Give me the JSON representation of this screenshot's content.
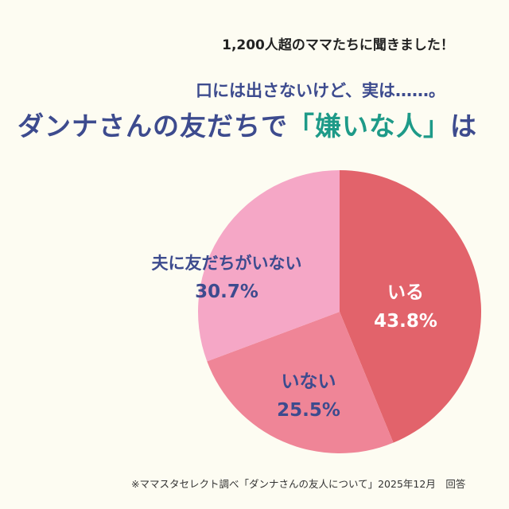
{
  "header": {
    "lead": "1,200人超のママたちに聞きました！",
    "subtitle": "口には出さないけど、実は……。",
    "title_pre": "ダンナさんの友だちで",
    "title_highlight": "「嫌いな人」",
    "title_post": "は"
  },
  "chart_data": {
    "type": "pie",
    "start": "top",
    "direction": "clockwise",
    "slices": [
      {
        "label": "いる",
        "value": 43.8,
        "display": "43.8%",
        "color": "#e2636b",
        "text_color": "#ffffff"
      },
      {
        "label": "いない",
        "value": 25.5,
        "display": "25.5%",
        "color": "#ef8597",
        "text_color": "#3d4b8e"
      },
      {
        "label": "夫に友だちがいない",
        "value": 30.7,
        "display": "30.7%",
        "color": "#f5a7c6",
        "text_color": "#3d4b8e"
      }
    ]
  },
  "footnote": "※ママスタセレクト調べ「ダンナさんの友人について」2025年12月　回答"
}
